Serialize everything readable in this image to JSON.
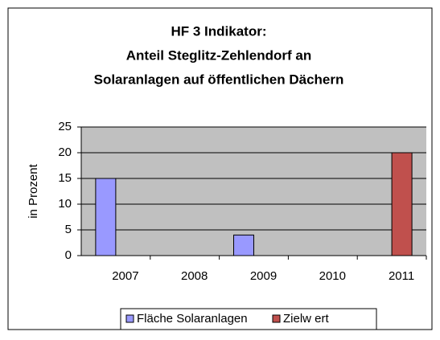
{
  "chart_data": {
    "type": "bar",
    "title": [
      "HF 3 Indikator:",
      "Anteil Steglitz-Zehlendorf an",
      "Solaranlagen auf öffentlichen Dächern"
    ],
    "y_label": "in Prozent",
    "categories": [
      "2007",
      "2008",
      "2009",
      "2010",
      "2011"
    ],
    "series": [
      {
        "name": "Fläche Solaranlagen",
        "color": "#9999ff",
        "values": [
          15,
          null,
          4,
          null,
          null
        ]
      },
      {
        "name": "Zielw ert",
        "color": "#c0504d",
        "values": [
          null,
          null,
          null,
          null,
          20
        ]
      }
    ],
    "ylim": [
      0,
      25
    ],
    "yticks": [
      0,
      5,
      10,
      15,
      20,
      25
    ],
    "grid": true,
    "legend": "bottom"
  }
}
